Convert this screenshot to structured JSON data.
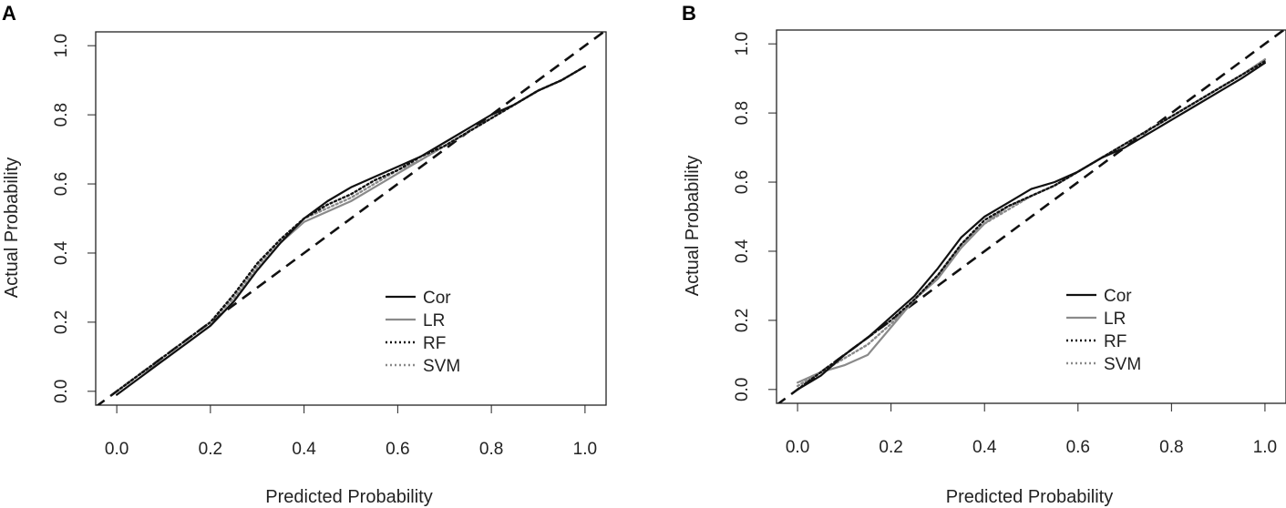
{
  "figure_panels": [
    "A",
    "B"
  ],
  "colors": {
    "cor": "#111111",
    "lr": "#8a8a8a",
    "rf": "#111111",
    "svm": "#8a8a8a",
    "ideal": "#111111",
    "frame": "#222222"
  },
  "chart_data": [
    {
      "type": "line",
      "panel": "A",
      "title": "",
      "xlabel": "Predicted Probability",
      "ylabel": "Actual Probability",
      "xlim": [
        -0.045,
        1.045
      ],
      "ylim": [
        -0.04,
        1.04
      ],
      "xticks": [
        "0.0",
        "0.2",
        "0.4",
        "0.6",
        "0.8",
        "1.0"
      ],
      "yticks": [
        "0.0",
        "0.2",
        "0.4",
        "0.6",
        "0.8",
        "1.0"
      ],
      "legend_position": "bottom-right",
      "reference_line": {
        "name": "Ideal",
        "style": "dashed",
        "x": [
          -0.045,
          1.045
        ],
        "y": [
          -0.045,
          1.045
        ]
      },
      "series": [
        {
          "name": "Cor",
          "style": "solid",
          "color": "#111111",
          "x": [
            0.0,
            0.05,
            0.1,
            0.15,
            0.2,
            0.25,
            0.3,
            0.35,
            0.4,
            0.45,
            0.5,
            0.55,
            0.6,
            0.65,
            0.7,
            0.75,
            0.8,
            0.85,
            0.9,
            0.95,
            1.0
          ],
          "y": [
            -0.01,
            0.04,
            0.09,
            0.14,
            0.19,
            0.26,
            0.35,
            0.43,
            0.5,
            0.55,
            0.59,
            0.62,
            0.65,
            0.68,
            0.72,
            0.76,
            0.8,
            0.83,
            0.87,
            0.9,
            0.94
          ]
        },
        {
          "name": "LR",
          "style": "solid",
          "color": "#8a8a8a",
          "x": [
            0.0,
            0.05,
            0.1,
            0.15,
            0.2,
            0.25,
            0.3,
            0.35,
            0.4,
            0.45,
            0.5,
            0.55,
            0.6,
            0.65,
            0.7,
            0.75,
            0.8,
            0.85,
            0.9,
            0.95,
            1.0
          ],
          "y": [
            0.0,
            0.05,
            0.09,
            0.14,
            0.19,
            0.26,
            0.35,
            0.43,
            0.49,
            0.52,
            0.55,
            0.59,
            0.63,
            0.67,
            0.71,
            0.75,
            0.79,
            0.83,
            0.87,
            0.9,
            0.94
          ]
        },
        {
          "name": "RF",
          "style": "dotted",
          "color": "#111111",
          "x": [
            0.0,
            0.05,
            0.1,
            0.15,
            0.2,
            0.25,
            0.3,
            0.35,
            0.4,
            0.45,
            0.5,
            0.55,
            0.6,
            0.65,
            0.7,
            0.75,
            0.8,
            0.85,
            0.9,
            0.95,
            1.0
          ],
          "y": [
            0.0,
            0.05,
            0.1,
            0.15,
            0.2,
            0.28,
            0.37,
            0.44,
            0.5,
            0.54,
            0.57,
            0.61,
            0.64,
            0.68,
            0.71,
            0.75,
            0.79,
            0.83,
            0.87,
            0.9,
            0.94
          ]
        },
        {
          "name": "SVM",
          "style": "dotted",
          "color": "#8a8a8a",
          "x": [
            0.0,
            0.05,
            0.1,
            0.15,
            0.2,
            0.25,
            0.3,
            0.35,
            0.4,
            0.45,
            0.5,
            0.55,
            0.6,
            0.65,
            0.7,
            0.75,
            0.8,
            0.85,
            0.9,
            0.95,
            1.0
          ],
          "y": [
            0.0,
            0.05,
            0.1,
            0.15,
            0.2,
            0.27,
            0.36,
            0.44,
            0.5,
            0.53,
            0.56,
            0.6,
            0.64,
            0.67,
            0.71,
            0.75,
            0.79,
            0.83,
            0.87,
            0.9,
            0.94
          ]
        }
      ]
    },
    {
      "type": "line",
      "panel": "B",
      "title": "",
      "xlabel": "Predicted Probability",
      "ylabel": "Actual Probability",
      "xlim": [
        -0.045,
        1.045
      ],
      "ylim": [
        -0.04,
        1.04
      ],
      "xticks": [
        "0.0",
        "0.2",
        "0.4",
        "0.6",
        "0.8",
        "1.0"
      ],
      "yticks": [
        "0.0",
        "0.2",
        "0.4",
        "0.6",
        "0.8",
        "1.0"
      ],
      "legend_position": "bottom-right",
      "reference_line": {
        "name": "Ideal",
        "style": "dashed",
        "x": [
          -0.045,
          1.045
        ],
        "y": [
          -0.045,
          1.045
        ]
      },
      "series": [
        {
          "name": "Cor",
          "style": "solid",
          "color": "#111111",
          "x": [
            0.0,
            0.05,
            0.1,
            0.15,
            0.2,
            0.25,
            0.3,
            0.35,
            0.4,
            0.45,
            0.5,
            0.55,
            0.6,
            0.65,
            0.7,
            0.75,
            0.8,
            0.85,
            0.9,
            0.95,
            1.0
          ],
          "y": [
            0.0,
            0.04,
            0.1,
            0.15,
            0.21,
            0.27,
            0.35,
            0.44,
            0.5,
            0.54,
            0.58,
            0.6,
            0.63,
            0.67,
            0.7,
            0.74,
            0.78,
            0.82,
            0.86,
            0.9,
            0.945
          ]
        },
        {
          "name": "LR",
          "style": "solid",
          "color": "#8a8a8a",
          "x": [
            0.0,
            0.05,
            0.1,
            0.15,
            0.2,
            0.25,
            0.3,
            0.35,
            0.4,
            0.45,
            0.5,
            0.55,
            0.6,
            0.65,
            0.7,
            0.75,
            0.8,
            0.85,
            0.9,
            0.95,
            1.0
          ],
          "y": [
            0.02,
            0.05,
            0.07,
            0.1,
            0.18,
            0.26,
            0.32,
            0.41,
            0.48,
            0.53,
            0.56,
            0.59,
            0.63,
            0.67,
            0.71,
            0.75,
            0.79,
            0.83,
            0.87,
            0.91,
            0.955
          ]
        },
        {
          "name": "RF",
          "style": "dotted",
          "color": "#111111",
          "x": [
            0.0,
            0.05,
            0.1,
            0.15,
            0.2,
            0.25,
            0.3,
            0.35,
            0.4,
            0.45,
            0.5,
            0.55,
            0.6,
            0.65,
            0.7,
            0.75,
            0.8,
            0.85,
            0.9,
            0.95,
            1.0
          ],
          "y": [
            0.0,
            0.05,
            0.1,
            0.15,
            0.2,
            0.26,
            0.33,
            0.42,
            0.49,
            0.53,
            0.56,
            0.59,
            0.63,
            0.67,
            0.71,
            0.75,
            0.79,
            0.83,
            0.87,
            0.91,
            0.95
          ]
        },
        {
          "name": "SVM",
          "style": "dotted",
          "color": "#8a8a8a",
          "x": [
            0.0,
            0.05,
            0.1,
            0.15,
            0.2,
            0.25,
            0.3,
            0.35,
            0.4,
            0.45,
            0.5,
            0.55,
            0.6,
            0.65,
            0.7,
            0.75,
            0.8,
            0.85,
            0.9,
            0.95,
            1.0
          ],
          "y": [
            0.01,
            0.05,
            0.09,
            0.13,
            0.19,
            0.26,
            0.33,
            0.42,
            0.48,
            0.52,
            0.56,
            0.59,
            0.63,
            0.67,
            0.71,
            0.75,
            0.79,
            0.83,
            0.87,
            0.91,
            0.955
          ]
        }
      ]
    }
  ]
}
